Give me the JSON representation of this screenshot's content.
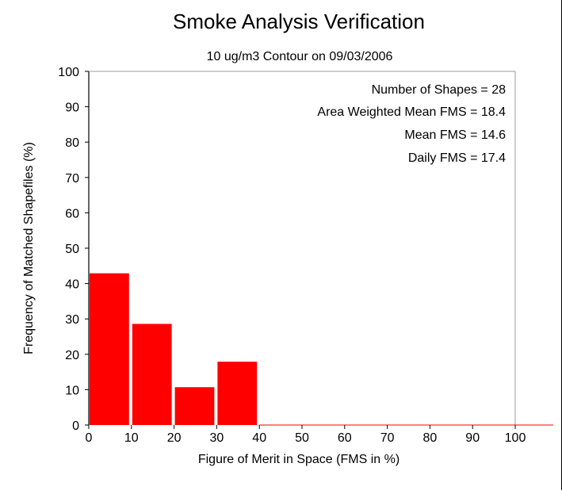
{
  "chart_data": {
    "type": "bar",
    "title": "Smoke Analysis Verification",
    "subtitle": "10 ug/m3 Contour on 09/03/2006",
    "xlabel": "Figure of Merit in Space (FMS in %)",
    "ylabel": "Frequency of Matched Shapefiles (%)",
    "xlim": [
      0,
      100
    ],
    "ylim": [
      0,
      100
    ],
    "x_ticks": [
      "0",
      "10",
      "20",
      "30",
      "40",
      "50",
      "60",
      "70",
      "80",
      "90",
      "100"
    ],
    "y_ticks": [
      "0",
      "10",
      "20",
      "30",
      "40",
      "50",
      "60",
      "70",
      "80",
      "90",
      "100"
    ],
    "bins": [
      {
        "x0": 0,
        "x1": 10,
        "value": 42.9
      },
      {
        "x0": 10,
        "x1": 20,
        "value": 28.6
      },
      {
        "x0": 20,
        "x1": 30,
        "value": 10.7
      },
      {
        "x0": 30,
        "x1": 40,
        "value": 17.9
      },
      {
        "x0": 40,
        "x1": 50,
        "value": 0
      },
      {
        "x0": 50,
        "x1": 60,
        "value": 0
      },
      {
        "x0": 60,
        "x1": 70,
        "value": 0
      },
      {
        "x0": 70,
        "x1": 80,
        "value": 0
      },
      {
        "x0": 80,
        "x1": 90,
        "value": 0
      },
      {
        "x0": 90,
        "x1": 100,
        "value": 0
      }
    ],
    "bar_color": "#ff0000",
    "grid": false,
    "annotations": [
      "Number of Shapes = 28",
      "Area Weighted Mean FMS = 18.4",
      "Mean FMS = 14.6",
      "Daily FMS = 17.4"
    ]
  }
}
